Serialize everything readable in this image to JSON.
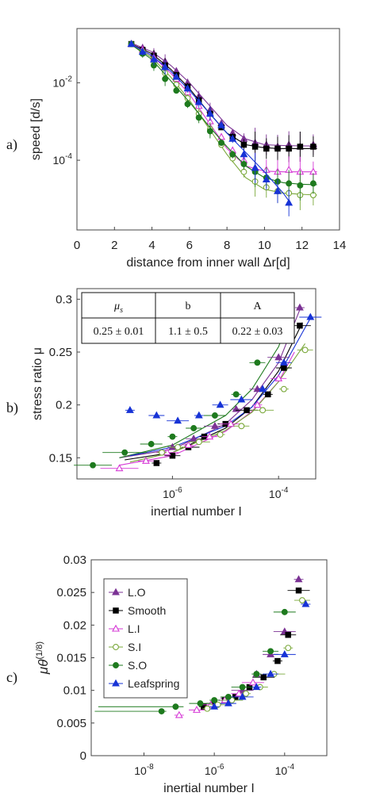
{
  "panel_labels": [
    "a)",
    "b)",
    "c)"
  ],
  "chart_data": [
    {
      "type": "scatter",
      "panel": "a)",
      "xlabel": "distance from inner wall Δr[d]",
      "ylabel": "speed [d/s]",
      "xlim": [
        0,
        14
      ],
      "ylim_log10": [
        -5.8,
        -0.6
      ],
      "y_scale": "log",
      "grid": false,
      "x_ticks": [
        0,
        2,
        4,
        6,
        8,
        10,
        12,
        14
      ],
      "y_ticks": [
        {
          "value": -2,
          "label": "10",
          "sup": "-2"
        },
        {
          "value": -4,
          "label": "10",
          "sup": "-4"
        }
      ],
      "series": [
        {
          "color": "#7b3294",
          "marker": "tri-up",
          "fill": true,
          "x": [
            2.9,
            3.5,
            4.1,
            4.7,
            5.3,
            5.9,
            6.5,
            7.1,
            7.7,
            8.3,
            8.9,
            9.5,
            10.1,
            10.7,
            11.3,
            11.9,
            12.6
          ],
          "y": [
            -1.0,
            -1.1,
            -1.25,
            -1.45,
            -1.7,
            -2.0,
            -2.35,
            -2.7,
            -3.05,
            -3.3,
            -3.45,
            -3.55,
            -3.6,
            -3.65,
            -3.6,
            -3.65,
            -3.6
          ],
          "curve_x": [
            2.8,
            4,
            5,
            6,
            7,
            8,
            9,
            10,
            11,
            12,
            12.8
          ],
          "curve_y": [
            -0.95,
            -1.2,
            -1.55,
            -2.0,
            -2.55,
            -3.1,
            -3.45,
            -3.6,
            -3.62,
            -3.63,
            -3.63
          ]
        },
        {
          "color": "#000000",
          "marker": "square",
          "fill": true,
          "x": [
            2.9,
            3.5,
            4.1,
            4.7,
            5.3,
            5.9,
            6.5,
            7.1,
            7.7,
            8.3,
            8.9,
            9.5,
            10.1,
            10.7,
            11.3,
            11.9,
            12.6
          ],
          "y": [
            -1.0,
            -1.15,
            -1.3,
            -1.55,
            -1.8,
            -2.1,
            -2.45,
            -2.8,
            -3.15,
            -3.4,
            -3.6,
            -3.65,
            -3.7,
            -3.7,
            -3.7,
            -3.65,
            -3.65
          ],
          "curve_x": [
            2.8,
            4,
            5,
            6,
            7,
            8,
            9,
            10,
            11,
            12,
            12.8
          ],
          "curve_y": [
            -0.97,
            -1.25,
            -1.65,
            -2.15,
            -2.75,
            -3.3,
            -3.6,
            -3.68,
            -3.7,
            -3.7,
            -3.7
          ]
        },
        {
          "color": "#d63ad6",
          "marker": "tri-up",
          "fill": false,
          "x": [
            2.9,
            3.5,
            4.1,
            4.7,
            5.3,
            5.9,
            6.5,
            7.1,
            7.7,
            8.3,
            8.9,
            9.5,
            10.1,
            10.7,
            11.3,
            11.9,
            12.6
          ],
          "y": [
            -1.0,
            -1.15,
            -1.35,
            -1.6,
            -1.9,
            -2.25,
            -2.6,
            -3.0,
            -3.4,
            -3.75,
            -4.0,
            -4.2,
            -4.25,
            -4.3,
            -4.25,
            -4.3,
            -4.3
          ],
          "curve_x": [
            2.8,
            4,
            5,
            6,
            7,
            8,
            9,
            10,
            11,
            12,
            12.8
          ],
          "curve_y": [
            -0.97,
            -1.3,
            -1.75,
            -2.3,
            -3.0,
            -3.7,
            -4.15,
            -4.28,
            -4.3,
            -4.3,
            -4.3
          ]
        },
        {
          "color": "#7aa83a",
          "marker": "circle",
          "fill": false,
          "x": [
            2.9,
            3.5,
            4.1,
            4.7,
            5.3,
            5.9,
            6.5,
            7.1,
            7.7,
            8.3,
            8.9,
            9.5,
            10.1,
            10.7,
            11.3,
            11.9,
            12.6
          ],
          "y": [
            -1.0,
            -1.2,
            -1.45,
            -1.75,
            -2.05,
            -2.4,
            -2.8,
            -3.2,
            -3.6,
            -3.95,
            -4.3,
            -4.55,
            -4.7,
            -4.8,
            -4.85,
            -4.9,
            -4.9
          ],
          "curve_x": [
            2.8,
            4,
            5,
            6,
            7,
            8,
            9,
            10,
            11,
            12,
            12.8
          ],
          "curve_y": [
            -0.98,
            -1.35,
            -1.85,
            -2.45,
            -3.15,
            -3.85,
            -4.45,
            -4.75,
            -4.85,
            -4.88,
            -4.9
          ]
        },
        {
          "color": "#1e7a1e",
          "marker": "circle",
          "fill": true,
          "x": [
            2.9,
            3.5,
            4.1,
            4.7,
            5.3,
            5.9,
            6.5,
            7.1,
            7.7,
            8.3,
            8.9,
            9.5,
            10.1,
            10.7,
            11.3,
            11.9,
            12.6
          ],
          "y": [
            -1.0,
            -1.25,
            -1.55,
            -1.9,
            -2.2,
            -2.55,
            -2.9,
            -3.25,
            -3.55,
            -3.85,
            -4.1,
            -4.3,
            -4.45,
            -4.55,
            -4.6,
            -4.65,
            -4.6
          ],
          "curve_x": [
            2.8,
            4,
            5,
            6,
            7,
            8,
            9,
            10,
            11,
            12,
            12.8
          ],
          "curve_y": [
            -0.98,
            -1.4,
            -1.95,
            -2.5,
            -3.1,
            -3.65,
            -4.15,
            -4.45,
            -4.58,
            -4.62,
            -4.63
          ]
        },
        {
          "color": "#1733d6",
          "marker": "tri-up",
          "fill": true,
          "x": [
            2.9,
            3.5,
            4.1,
            4.7,
            5.3,
            5.9,
            6.5,
            7.1,
            7.7,
            8.3,
            8.9,
            9.5,
            10.1,
            10.7,
            11.3
          ],
          "y": [
            -1.0,
            -1.2,
            -1.4,
            -1.6,
            -1.85,
            -2.15,
            -2.5,
            -2.8,
            -3.1,
            -3.45,
            -3.85,
            -4.2,
            -4.5,
            -4.8,
            -5.1
          ],
          "curve_x": [
            2.8,
            4,
            5,
            6,
            7,
            8,
            9,
            10,
            11,
            11.3
          ],
          "curve_y": [
            -0.98,
            -1.3,
            -1.7,
            -2.2,
            -2.75,
            -3.3,
            -3.8,
            -4.3,
            -4.85,
            -5.05
          ]
        }
      ]
    },
    {
      "type": "scatter",
      "panel": "b)",
      "xlabel": "inertial number I",
      "ylabel": "stress ratio μ",
      "x_scale": "log",
      "xlim_log10": [
        -7.8,
        -3.3
      ],
      "ylim": [
        0.13,
        0.31
      ],
      "grid": false,
      "x_ticks": [
        {
          "value": -6,
          "label": "10",
          "sup": "-6"
        },
        {
          "value": -4,
          "label": "10",
          "sup": "-4"
        }
      ],
      "y_ticks": [
        0.15,
        0.2,
        0.25,
        0.3
      ],
      "table": {
        "headers": [
          "μ_s",
          "b",
          "A"
        ],
        "header_display": [
          {
            "main": "μ",
            "sub": "s"
          },
          {
            "main": "b",
            "sub": ""
          },
          {
            "main": "A",
            "sub": ""
          }
        ],
        "values": [
          "0.25 ± 0.01",
          "1.1 ± 0.5",
          "0.22 ± 0.03"
        ]
      },
      "series": [
        {
          "color": "#7b3294",
          "marker": "tri-up",
          "fill": true,
          "x": [
            -6.0,
            -5.6,
            -5.2,
            -4.8,
            -4.4,
            -4.0,
            -3.6
          ],
          "y": [
            0.16,
            0.168,
            0.18,
            0.196,
            0.215,
            0.245,
            0.292
          ]
        },
        {
          "color": "#000000",
          "marker": "square",
          "fill": true,
          "x": [
            -6.3,
            -6.0,
            -5.7,
            -5.4,
            -5.0,
            -4.6,
            -4.2,
            -3.9,
            -3.6
          ],
          "y": [
            0.145,
            0.152,
            0.16,
            0.17,
            0.182,
            0.195,
            0.21,
            0.235,
            0.275
          ]
        },
        {
          "color": "#d63ad6",
          "marker": "tri-up",
          "fill": false,
          "x": [
            -7.0,
            -6.5,
            -6.1,
            -5.7,
            -5.3,
            -4.9,
            -4.4,
            -4.0
          ],
          "y": [
            0.14,
            0.147,
            0.155,
            0.162,
            0.17,
            0.182,
            0.2,
            0.225
          ]
        },
        {
          "color": "#7aa83a",
          "marker": "circle",
          "fill": false,
          "x": [
            -6.2,
            -5.9,
            -5.5,
            -5.1,
            -4.7,
            -4.3,
            -3.9,
            -3.5
          ],
          "y": [
            0.155,
            0.16,
            0.165,
            0.172,
            0.18,
            0.195,
            0.215,
            0.252
          ]
        },
        {
          "color": "#1e7a1e",
          "marker": "circle",
          "fill": true,
          "x": [
            -7.5,
            -6.9,
            -6.4,
            -6.0,
            -5.6,
            -5.2,
            -4.8,
            -4.4,
            -4.0
          ],
          "y": [
            0.143,
            0.155,
            0.163,
            0.17,
            0.178,
            0.19,
            0.21,
            0.24,
            0.275
          ]
        },
        {
          "color": "#1733d6",
          "marker": "tri-up",
          "fill": true,
          "x": [
            -6.8,
            -6.3,
            -5.9,
            -5.5,
            -5.1,
            -4.7,
            -4.3,
            -3.9,
            -3.4
          ],
          "y": [
            0.195,
            0.19,
            0.185,
            0.19,
            0.2,
            0.205,
            0.215,
            0.24,
            0.283
          ]
        }
      ],
      "curves": [
        {
          "color": "#7b3294",
          "x": [
            -7.0,
            -6.0,
            -5.0,
            -4.5,
            -4.0,
            -3.6
          ],
          "y": [
            0.15,
            0.158,
            0.182,
            0.205,
            0.24,
            0.29
          ]
        },
        {
          "color": "#000000",
          "x": [
            -6.9,
            -6.0,
            -5.0,
            -4.5,
            -4.0,
            -3.55
          ],
          "y": [
            0.148,
            0.155,
            0.178,
            0.198,
            0.232,
            0.278
          ]
        },
        {
          "color": "#d63ad6",
          "x": [
            -7.0,
            -6.0,
            -5.0,
            -4.5,
            -4.0,
            -3.7
          ],
          "y": [
            0.143,
            0.152,
            0.175,
            0.194,
            0.222,
            0.25
          ]
        },
        {
          "color": "#7aa83a",
          "x": [
            -6.8,
            -6.0,
            -5.0,
            -4.5,
            -4.0,
            -3.5
          ],
          "y": [
            0.146,
            0.155,
            0.176,
            0.193,
            0.222,
            0.258
          ]
        },
        {
          "color": "#1e7a1e",
          "x": [
            -7.0,
            -6.0,
            -5.0,
            -4.5,
            -4.0,
            -3.85
          ],
          "y": [
            0.15,
            0.162,
            0.19,
            0.215,
            0.255,
            0.275
          ]
        },
        {
          "color": "#1733d6",
          "x": [
            -6.8,
            -6.0,
            -5.0,
            -4.5,
            -4.0,
            -3.4
          ],
          "y": [
            0.152,
            0.16,
            0.18,
            0.198,
            0.228,
            0.282
          ]
        }
      ]
    },
    {
      "type": "scatter",
      "panel": "c)",
      "xlabel": "inertial number I",
      "ylabel": "μθ(1/8)",
      "ylabel_parts": {
        "mu": "μ",
        "theta": "θ",
        "power": "(1/8)"
      },
      "x_scale": "log",
      "xlim_log10": [
        -9.5,
        -2.8
      ],
      "ylim": [
        0,
        0.03
      ],
      "grid": false,
      "x_ticks": [
        {
          "value": -8,
          "label": "10",
          "sup": "-8"
        },
        {
          "value": -6,
          "label": "10",
          "sup": "-6"
        },
        {
          "value": -4,
          "label": "10",
          "sup": "-4"
        }
      ],
      "y_ticks": [
        0,
        0.005,
        0.01,
        0.015,
        0.02,
        0.025,
        0.03
      ],
      "y_tick_labels": [
        "0",
        "0.005",
        "0.01",
        "0.015",
        "0.02",
        "0.025",
        "0.03"
      ],
      "legend_position": "top-left",
      "series": [
        {
          "name": "L.O",
          "color": "#7b3294",
          "marker": "tri-up",
          "fill": true,
          "x": [
            -6.0,
            -5.6,
            -5.2,
            -4.8,
            -4.4,
            -4.0,
            -3.6
          ],
          "y": [
            0.008,
            0.0088,
            0.01,
            0.0125,
            0.0155,
            0.019,
            0.027
          ]
        },
        {
          "name": "Smooth",
          "color": "#000000",
          "marker": "square",
          "fill": true,
          "x": [
            -6.3,
            -6.0,
            -5.7,
            -5.4,
            -5.0,
            -4.6,
            -4.2,
            -3.9,
            -3.6
          ],
          "y": [
            0.0075,
            0.008,
            0.0085,
            0.009,
            0.0105,
            0.012,
            0.0145,
            0.0185,
            0.0253
          ]
        },
        {
          "name": "L.I",
          "color": "#d63ad6",
          "marker": "tri-up",
          "fill": false,
          "x": [
            -7.0,
            -6.5,
            -6.1,
            -5.7,
            -5.3,
            -4.9
          ],
          "y": [
            0.0062,
            0.007,
            0.0078,
            0.0085,
            0.0095,
            0.0112
          ]
        },
        {
          "name": "S.I",
          "color": "#7aa83a",
          "marker": "circle",
          "fill": false,
          "x": [
            -6.2,
            -5.9,
            -5.5,
            -5.1,
            -4.7,
            -4.3,
            -3.9,
            -3.5
          ],
          "y": [
            0.0072,
            0.0078,
            0.0085,
            0.0095,
            0.0105,
            0.0125,
            0.0165,
            0.0238
          ]
        },
        {
          "name": "S.O",
          "color": "#1e7a1e",
          "marker": "circle",
          "fill": true,
          "x": [
            -7.5,
            -7.1,
            -6.4,
            -6.0,
            -5.6,
            -5.2,
            -4.8,
            -4.4,
            -4.0
          ],
          "y": [
            0.0068,
            0.0075,
            0.008,
            0.0085,
            0.009,
            0.0105,
            0.0125,
            0.016,
            0.022
          ]
        },
        {
          "name": "Leafspring",
          "color": "#1733d6",
          "marker": "tri-up",
          "fill": true,
          "x": [
            -6.0,
            -5.6,
            -5.2,
            -4.8,
            -4.4,
            -4.0,
            -3.4
          ],
          "y": [
            0.0075,
            0.008,
            0.009,
            0.0105,
            0.0125,
            0.0155,
            0.0232
          ]
        }
      ]
    }
  ]
}
